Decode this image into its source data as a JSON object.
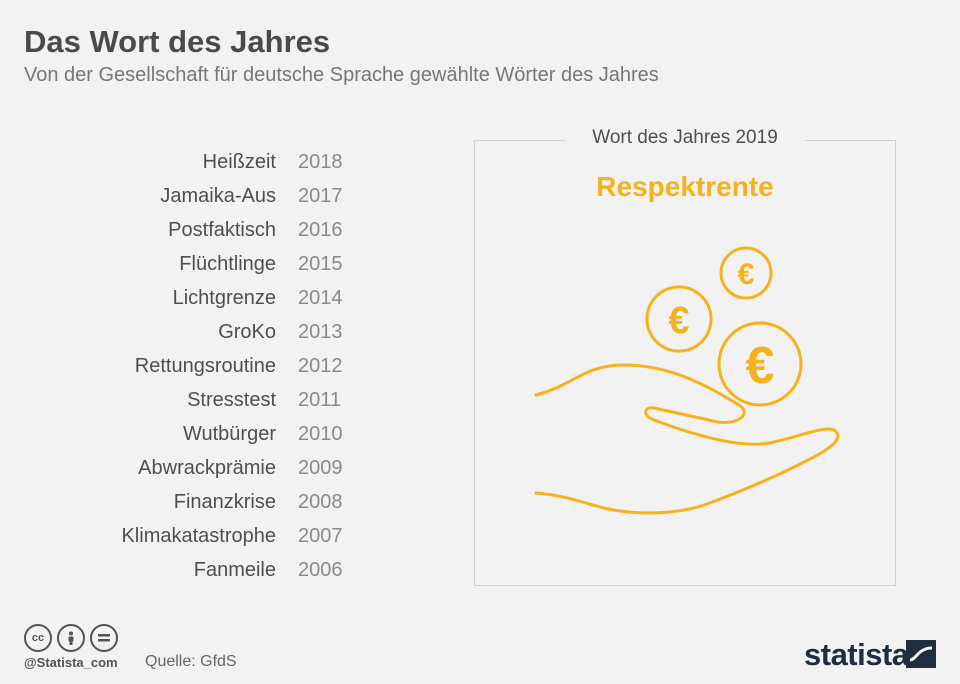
{
  "header": {
    "title": "Das Wort des Jahres",
    "subtitle": "Von der Gesellschaft für deutsche Sprache gewählte Wörter des Jahres"
  },
  "words": [
    {
      "word": "Heißzeit",
      "year": "2018"
    },
    {
      "word": "Jamaika-Aus",
      "year": "2017"
    },
    {
      "word": "Postfaktisch",
      "year": "2016"
    },
    {
      "word": "Flüchtlinge",
      "year": "2015"
    },
    {
      "word": "Lichtgrenze",
      "year": "2014"
    },
    {
      "word": "GroKo",
      "year": "2013"
    },
    {
      "word": "Rettungsroutine",
      "year": "2012"
    },
    {
      "word": "Stresstest",
      "year": "2011"
    },
    {
      "word": "Wutbürger",
      "year": "2010"
    },
    {
      "word": "Abwrackprämie",
      "year": "2009"
    },
    {
      "word": "Finanzkrise",
      "year": "2008"
    },
    {
      "word": "Klimakatastrophe",
      "year": "2007"
    },
    {
      "word": "Fanmeile",
      "year": "2006"
    }
  ],
  "highlight": {
    "label": "Wort des Jahres 2019",
    "word": "Respektrente",
    "coin_symbol": "€"
  },
  "footer": {
    "license_icons": [
      "cc-icon",
      "by-icon",
      "nd-icon"
    ],
    "cc_text": "cc",
    "handle": "@Statista_com",
    "source": "Quelle: GfdS",
    "brand": "statista"
  },
  "colors": {
    "accent": "#f5b21b",
    "background": "#f2f2f2",
    "brand": "#1f2d40"
  }
}
